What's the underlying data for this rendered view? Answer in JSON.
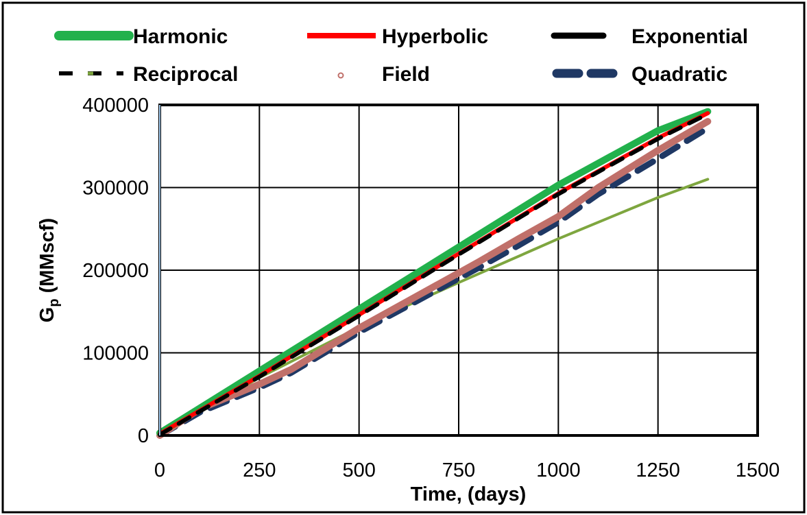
{
  "chart_data": {
    "type": "line",
    "title": "",
    "xlabel": "Time, (days)",
    "ylabel_main": "G",
    "ylabel_sub": "p",
    "ylabel_rest": " (MMscf)",
    "xlim": [
      0,
      1500
    ],
    "ylim": [
      0,
      400000
    ],
    "x_ticks": [
      "0",
      "250",
      "500",
      "750",
      "1000",
      "1250",
      "1500"
    ],
    "y_ticks": [
      "0",
      "100000",
      "200000",
      "300000",
      "400000"
    ],
    "grid": true,
    "legend_position": "top",
    "series": [
      {
        "name": "Harmonic",
        "color": "#22b14c",
        "style": "solid-thick",
        "x": [
          0,
          250,
          500,
          750,
          1000,
          1250,
          1375
        ],
        "y": [
          3000,
          78000,
          153000,
          228000,
          303000,
          369000,
          392000
        ]
      },
      {
        "name": "Hyperbolic",
        "color": "#ff0000",
        "style": "solid",
        "x": [
          0,
          250,
          500,
          750,
          1000,
          1250,
          1375
        ],
        "y": [
          2000,
          72000,
          146000,
          220000,
          293000,
          360000,
          390000
        ]
      },
      {
        "name": "Exponential",
        "color": "#000000",
        "style": "dash-thick",
        "x": [
          0,
          250,
          500,
          750,
          1000,
          1250,
          1375
        ],
        "y": [
          1000,
          71000,
          145000,
          219000,
          292000,
          359000,
          389000
        ]
      },
      {
        "name": "Reciprocal",
        "color": "#7ea63f",
        "style": "solid-thin",
        "x": [
          0,
          250,
          500,
          750,
          1000,
          1250,
          1375
        ],
        "y": [
          0,
          70000,
          131000,
          185000,
          238000,
          288000,
          310000
        ]
      },
      {
        "name": "Field",
        "color": "#c0706a",
        "style": "solid-thick",
        "x": [
          0,
          100,
          250,
          330,
          500,
          650,
          800,
          900,
          1000,
          1100,
          1250,
          1375
        ],
        "y": [
          0,
          32000,
          62000,
          80000,
          130000,
          170000,
          210000,
          238000,
          265000,
          300000,
          345000,
          380000
        ]
      },
      {
        "name": "Quadratic",
        "color": "#1f3864",
        "style": "dash",
        "x": [
          0,
          100,
          250,
          330,
          500,
          650,
          800,
          900,
          1000,
          1100,
          1250,
          1375
        ],
        "y": [
          0,
          28000,
          58000,
          76000,
          125000,
          164000,
          203000,
          230000,
          258000,
          292000,
          335000,
          372000
        ]
      }
    ],
    "legend": [
      {
        "label": "Harmonic",
        "series": 0
      },
      {
        "label": "Hyperbolic",
        "series": 1
      },
      {
        "label": "Exponential",
        "series": 2
      },
      {
        "label": "Reciprocal",
        "series": 3
      },
      {
        "label": "Field",
        "series": 4
      },
      {
        "label": "Quadratic",
        "series": 5
      }
    ]
  }
}
